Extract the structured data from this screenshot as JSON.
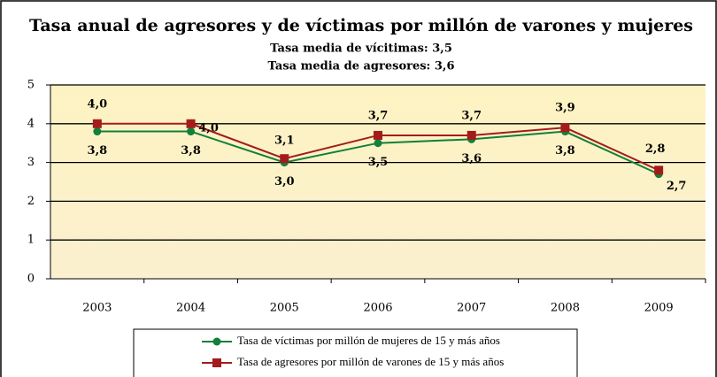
{
  "chart_data": {
    "type": "line",
    "title": "Tasa anual de agresores y de víctimas por millón de varones y mujeres",
    "subtitle": [
      "Tasa media de vícitimas: 3,5",
      "Tasa media de agresores: 3,6"
    ],
    "categories": [
      "2003",
      "2004",
      "2005",
      "2006",
      "2007",
      "2008",
      "2009"
    ],
    "series": [
      {
        "name": "Tasa de víctimas por millón de mujeres de 15 y más años",
        "color": "#12803a",
        "marker": "circle",
        "values": [
          3.8,
          3.8,
          3.0,
          3.5,
          3.6,
          3.8,
          2.7
        ],
        "value_labels": [
          "3,8",
          "3,8",
          "3,0",
          "3,5",
          "3,6",
          "3,8",
          "2,7"
        ]
      },
      {
        "name": "Tasa de agresores por millón de varones de 15 y más años",
        "color": "#a31c1c",
        "marker": "square",
        "values": [
          4.0,
          4.0,
          3.1,
          3.7,
          3.7,
          3.9,
          2.8
        ],
        "value_labels": [
          "4,0",
          "4,0",
          "3,1",
          "3,7",
          "3,7",
          "3,9",
          "2,8"
        ]
      }
    ],
    "ylim": [
      0,
      5
    ],
    "yticks": [
      0,
      1,
      2,
      3,
      4,
      5
    ],
    "grid": true,
    "legend": "bottom"
  }
}
